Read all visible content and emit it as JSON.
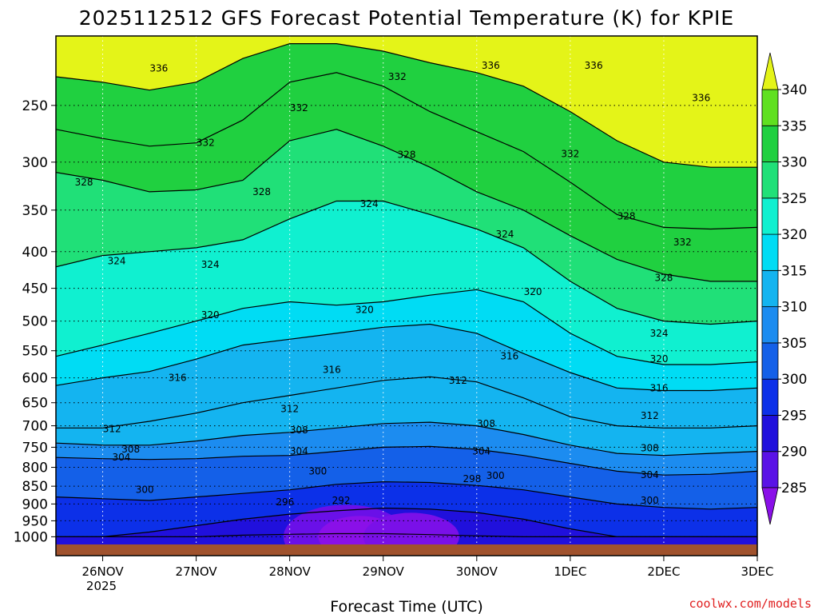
{
  "chart_data": {
    "type": "heatmap",
    "title": "2025112512 GFS Forecast Potential Temperature (K) for KPIE",
    "xlabel": "Forecast Time (UTC)",
    "ylabel": "",
    "credit": "coolwx.com/models",
    "y_axis": {
      "scale": "log-pressure",
      "inverted": true,
      "range_hpa": [
        1025,
        200
      ],
      "tick_labels": [
        "250",
        "300",
        "350",
        "400",
        "450",
        "500",
        "550",
        "600",
        "650",
        "700",
        "750",
        "800",
        "850",
        "900",
        "950",
        "1000"
      ],
      "tick_values": [
        250,
        300,
        350,
        400,
        450,
        500,
        550,
        600,
        650,
        700,
        750,
        800,
        850,
        900,
        950,
        1000
      ]
    },
    "x_axis": {
      "range_days": [
        -0.5,
        7
      ],
      "tick_labels": [
        "26NOV",
        "27NOV",
        "28NOV",
        "29NOV",
        "30NOV",
        "1DEC",
        "2DEC",
        "3DEC"
      ],
      "tick_values": [
        0,
        1,
        2,
        3,
        4,
        5,
        6,
        7
      ],
      "year_label": "2025"
    },
    "grid": true,
    "colorbar": {
      "levels": [
        285,
        290,
        295,
        300,
        305,
        310,
        315,
        320,
        325,
        330,
        335,
        340
      ],
      "tick_labels": [
        "285",
        "290",
        "295",
        "300",
        "305",
        "310",
        "315",
        "320",
        "325",
        "330",
        "335",
        "340"
      ],
      "colors": [
        "#8a10e8",
        "#5a12e6",
        "#2010dc",
        "#0c30e8",
        "#1460e8",
        "#1c8cf0",
        "#14b4f0",
        "#00dcf4",
        "#10f0d0",
        "#20e078",
        "#20d040",
        "#60e020",
        "#b8ee20",
        "#e4f418"
      ],
      "placement": "right"
    },
    "contour_interval_K": 4,
    "contours": [
      {
        "level": 292,
        "pressure_hpa": [
          1000,
          1000,
          1000,
          1000,
          995,
          992,
          990,
          990,
          993,
          997,
          1000,
          1000,
          1000,
          1000,
          1000,
          1000
        ]
      },
      {
        "level": 296,
        "pressure_hpa": [
          1000,
          1000,
          985,
          965,
          945,
          930,
          920,
          912,
          915,
          925,
          945,
          975,
          1000,
          1000,
          1000,
          1000
        ]
      },
      {
        "level": 300,
        "pressure_hpa": [
          880,
          885,
          890,
          880,
          870,
          860,
          845,
          838,
          840,
          848,
          860,
          880,
          900,
          910,
          915,
          910
        ]
      },
      {
        "level": 304,
        "pressure_hpa": [
          775,
          778,
          780,
          778,
          772,
          770,
          760,
          750,
          748,
          755,
          770,
          790,
          810,
          820,
          818,
          810
        ]
      },
      {
        "level": 308,
        "pressure_hpa": [
          740,
          745,
          745,
          735,
          722,
          715,
          705,
          695,
          692,
          700,
          720,
          745,
          765,
          770,
          765,
          760
        ]
      },
      {
        "level": 312,
        "pressure_hpa": [
          705,
          705,
          690,
          672,
          650,
          635,
          620,
          605,
          598,
          608,
          640,
          680,
          700,
          705,
          705,
          700
        ]
      },
      {
        "level": 316,
        "pressure_hpa": [
          615,
          600,
          588,
          565,
          540,
          530,
          520,
          510,
          505,
          520,
          555,
          590,
          620,
          625,
          625,
          620
        ]
      },
      {
        "level": 320,
        "pressure_hpa": [
          560,
          540,
          520,
          500,
          480,
          470,
          475,
          470,
          460,
          452,
          470,
          520,
          560,
          575,
          575,
          570
        ]
      },
      {
        "level": 324,
        "pressure_hpa": [
          420,
          405,
          400,
          395,
          385,
          360,
          340,
          340,
          355,
          372,
          395,
          440,
          480,
          500,
          505,
          500
        ]
      },
      {
        "level": 328,
        "pressure_hpa": [
          310,
          318,
          330,
          328,
          318,
          280,
          270,
          285,
          305,
          330,
          350,
          380,
          410,
          430,
          440,
          440
        ]
      },
      {
        "level": 332,
        "pressure_hpa": [
          270,
          278,
          285,
          282,
          262,
          232,
          225,
          235,
          255,
          272,
          290,
          320,
          355,
          370,
          372,
          370
        ]
      },
      {
        "level": 336,
        "pressure_hpa": [
          228,
          232,
          238,
          232,
          215,
          205,
          205,
          210,
          218,
          225,
          235,
          255,
          280,
          300,
          305,
          305
        ]
      }
    ],
    "contour_x_days": [
      -0.5,
      0.0,
      0.5,
      1.0,
      1.5,
      2.0,
      2.5,
      3.0,
      3.5,
      4.0,
      4.5,
      5.0,
      5.5,
      6.0,
      6.5,
      7.0
    ],
    "contour_labels": [
      {
        "text": "336",
        "day": 0.6,
        "p": 222
      },
      {
        "text": "332",
        "day": 3.15,
        "p": 228
      },
      {
        "text": "336",
        "day": 4.15,
        "p": 220
      },
      {
        "text": "336",
        "day": 5.25,
        "p": 220
      },
      {
        "text": "336",
        "day": 6.4,
        "p": 244
      },
      {
        "text": "332",
        "day": 2.1,
        "p": 252
      },
      {
        "text": "332",
        "day": 1.1,
        "p": 282
      },
      {
        "text": "332",
        "day": 5.0,
        "p": 292
      },
      {
        "text": "328",
        "day": -0.2,
        "p": 320
      },
      {
        "text": "328",
        "day": 3.25,
        "p": 293
      },
      {
        "text": "328",
        "day": 1.7,
        "p": 330
      },
      {
        "text": "324",
        "day": 2.85,
        "p": 343
      },
      {
        "text": "328",
        "day": 5.6,
        "p": 357
      },
      {
        "text": "324",
        "day": 4.3,
        "p": 378
      },
      {
        "text": "332",
        "day": 6.2,
        "p": 388
      },
      {
        "text": "324",
        "day": 0.15,
        "p": 412
      },
      {
        "text": "324",
        "day": 1.15,
        "p": 417
      },
      {
        "text": "328",
        "day": 6.0,
        "p": 435
      },
      {
        "text": "320",
        "day": 4.6,
        "p": 455
      },
      {
        "text": "320",
        "day": 2.8,
        "p": 482
      },
      {
        "text": "320",
        "day": 1.15,
        "p": 490
      },
      {
        "text": "324",
        "day": 5.95,
        "p": 520
      },
      {
        "text": "316",
        "day": 4.35,
        "p": 560
      },
      {
        "text": "320",
        "day": 5.95,
        "p": 565
      },
      {
        "text": "316",
        "day": 2.45,
        "p": 585
      },
      {
        "text": "316",
        "day": 0.8,
        "p": 600
      },
      {
        "text": "312",
        "day": 3.8,
        "p": 605
      },
      {
        "text": "316",
        "day": 5.95,
        "p": 620
      },
      {
        "text": "312",
        "day": 2.0,
        "p": 663
      },
      {
        "text": "312",
        "day": 5.85,
        "p": 678
      },
      {
        "text": "312",
        "day": 0.1,
        "p": 707
      },
      {
        "text": "308",
        "day": 4.1,
        "p": 695
      },
      {
        "text": "308",
        "day": 2.1,
        "p": 710
      },
      {
        "text": "308",
        "day": 0.3,
        "p": 755
      },
      {
        "text": "308",
        "day": 5.85,
        "p": 752
      },
      {
        "text": "304",
        "day": 2.1,
        "p": 760
      },
      {
        "text": "304",
        "day": 4.05,
        "p": 760
      },
      {
        "text": "304",
        "day": 0.2,
        "p": 775
      },
      {
        "text": "300",
        "day": 2.3,
        "p": 810
      },
      {
        "text": "304",
        "day": 5.85,
        "p": 820
      },
      {
        "text": "298",
        "day": 3.95,
        "p": 830
      },
      {
        "text": "300",
        "day": 4.2,
        "p": 822
      },
      {
        "text": "300",
        "day": 0.45,
        "p": 860
      },
      {
        "text": "300",
        "day": 5.85,
        "p": 890
      },
      {
        "text": "296",
        "day": 1.95,
        "p": 895
      },
      {
        "text": "292",
        "day": 2.55,
        "p": 890
      }
    ],
    "ground_color": "#a0522d"
  }
}
